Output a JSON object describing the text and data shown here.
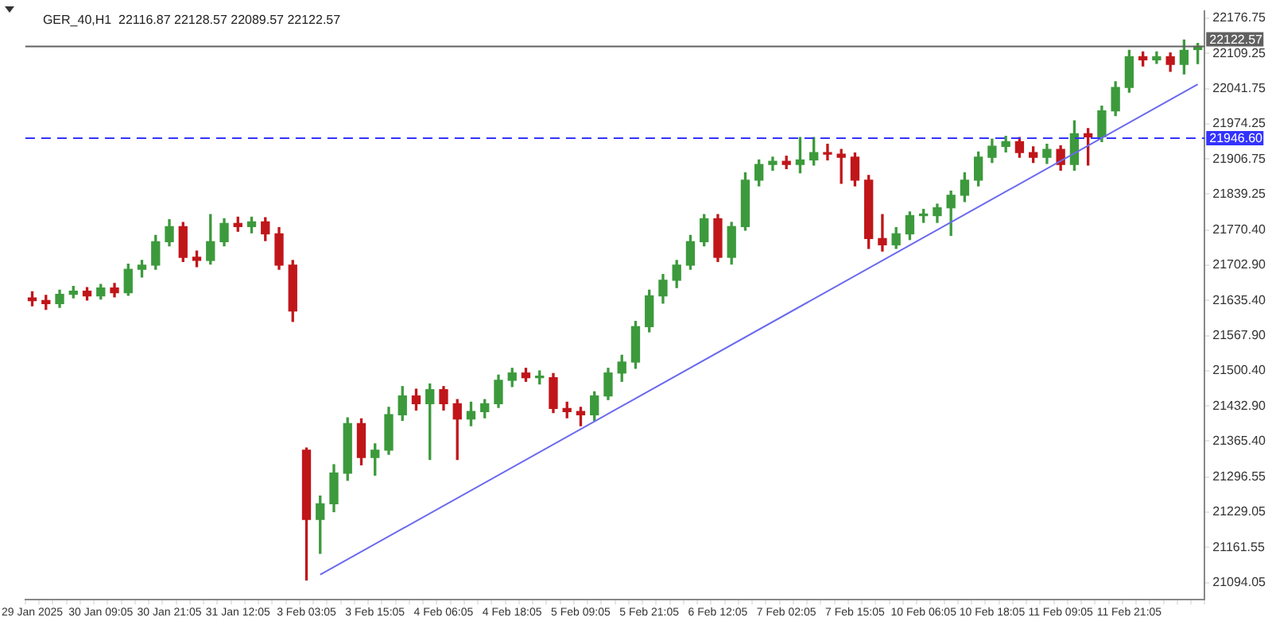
{
  "chart_data": {
    "type": "candlestick",
    "title": "GER_40,H1  22116.87 22128.57 22089.57 22122.57",
    "categories": [
      "29 Jan 2025",
      null,
      null,
      null,
      null,
      "30 Jan 09:05",
      null,
      null,
      null,
      null,
      "30 Jan 21:05",
      null,
      null,
      null,
      null,
      "31 Jan 12:05",
      null,
      null,
      null,
      null,
      "3 Feb 03:05",
      null,
      null,
      null,
      null,
      "3 Feb 15:05",
      null,
      null,
      null,
      null,
      "4 Feb 06:05",
      null,
      null,
      null,
      null,
      "4 Feb 18:05",
      null,
      null,
      null,
      null,
      "5 Feb 09:05",
      null,
      null,
      null,
      null,
      "5 Feb 21:05",
      null,
      null,
      null,
      null,
      "6 Feb 12:05",
      null,
      null,
      null,
      null,
      "7 Feb 02:05",
      null,
      null,
      null,
      null,
      "7 Feb 15:05",
      null,
      null,
      null,
      null,
      "10 Feb 06:05",
      null,
      null,
      null,
      null,
      "10 Feb 18:05",
      null,
      null,
      null,
      null,
      "11 Feb 09:05",
      null,
      null,
      null,
      null,
      "11 Feb 21:05",
      null,
      null,
      null,
      null,
      null
    ],
    "ohlc": [
      [
        21640,
        21652,
        21625,
        21635
      ],
      [
        21635,
        21645,
        21618,
        21629
      ],
      [
        21629,
        21655,
        21622,
        21647
      ],
      [
        21647,
        21662,
        21640,
        21653
      ],
      [
        21653,
        21660,
        21636,
        21644
      ],
      [
        21644,
        21666,
        21638,
        21659
      ],
      [
        21659,
        21668,
        21642,
        21650
      ],
      [
        21650,
        21705,
        21645,
        21695
      ],
      [
        21695,
        21712,
        21680,
        21703
      ],
      [
        21703,
        21760,
        21695,
        21748
      ],
      [
        21748,
        21790,
        21740,
        21777
      ],
      [
        21777,
        21785,
        21710,
        21718
      ],
      [
        21718,
        21730,
        21700,
        21712
      ],
      [
        21712,
        21800,
        21705,
        21748
      ],
      [
        21748,
        21792,
        21740,
        21783
      ],
      [
        21783,
        21795,
        21768,
        21777
      ],
      [
        21777,
        21795,
        21765,
        21786
      ],
      [
        21786,
        21794,
        21750,
        21763
      ],
      [
        21763,
        21775,
        21695,
        21703
      ],
      [
        21703,
        21712,
        21595,
        21615
      ],
      [
        21348,
        21352,
        21099,
        21215
      ],
      [
        21215,
        21260,
        21150,
        21245
      ],
      [
        21245,
        21320,
        21230,
        21304
      ],
      [
        21304,
        21410,
        21290,
        21399
      ],
      [
        21399,
        21408,
        21320,
        21334
      ],
      [
        21334,
        21360,
        21300,
        21348
      ],
      [
        21348,
        21430,
        21340,
        21416
      ],
      [
        21416,
        21470,
        21405,
        21452
      ],
      [
        21452,
        21465,
        21425,
        21437
      ],
      [
        21437,
        21475,
        21330,
        21464
      ],
      [
        21464,
        21470,
        21425,
        21437
      ],
      [
        21437,
        21445,
        21330,
        21408
      ],
      [
        21408,
        21440,
        21395,
        21422
      ],
      [
        21422,
        21445,
        21410,
        21437
      ],
      [
        21437,
        21492,
        21430,
        21482
      ],
      [
        21482,
        21505,
        21470,
        21496
      ],
      [
        21496,
        21505,
        21480,
        21487
      ],
      [
        21487,
        21500,
        21475,
        21487
      ],
      [
        21487,
        21495,
        21420,
        21428
      ],
      [
        21428,
        21440,
        21410,
        21422
      ],
      [
        21422,
        21430,
        21395,
        21416
      ],
      [
        21416,
        21460,
        21405,
        21452
      ],
      [
        21452,
        21505,
        21445,
        21496
      ],
      [
        21496,
        21530,
        21480,
        21517
      ],
      [
        21517,
        21595,
        21505,
        21585
      ],
      [
        21585,
        21655,
        21575,
        21644
      ],
      [
        21644,
        21685,
        21630,
        21674
      ],
      [
        21674,
        21712,
        21660,
        21703
      ],
      [
        21703,
        21760,
        21695,
        21748
      ],
      [
        21748,
        21800,
        21740,
        21792
      ],
      [
        21792,
        21800,
        21710,
        21718
      ],
      [
        21718,
        21785,
        21705,
        21777
      ],
      [
        21777,
        21880,
        21770,
        21866
      ],
      [
        21866,
        21905,
        21855,
        21896
      ],
      [
        21896,
        21910,
        21885,
        21902
      ],
      [
        21902,
        21912,
        21888,
        21896
      ],
      [
        21896,
        21948,
        21880,
        21905
      ],
      [
        21905,
        21948,
        21895,
        21919
      ],
      [
        21919,
        21935,
        21905,
        21916
      ],
      [
        21916,
        21925,
        21860,
        21910
      ],
      [
        21910,
        21918,
        21855,
        21866
      ],
      [
        21866,
        21875,
        21735,
        21754
      ],
      [
        21754,
        21800,
        21730,
        21742
      ],
      [
        21742,
        21775,
        21735,
        21763
      ],
      [
        21763,
        21805,
        21752,
        21798
      ],
      [
        21798,
        21810,
        21785,
        21798
      ],
      [
        21798,
        21820,
        21785,
        21813
      ],
      [
        21813,
        21845,
        21760,
        21837
      ],
      [
        21837,
        21880,
        21825,
        21866
      ],
      [
        21866,
        21920,
        21855,
        21910
      ],
      [
        21910,
        21945,
        21900,
        21931
      ],
      [
        21931,
        21950,
        21920,
        21940
      ],
      [
        21940,
        21948,
        21910,
        21919
      ],
      [
        21919,
        21930,
        21900,
        21910
      ],
      [
        21910,
        21935,
        21898,
        21925
      ],
      [
        21925,
        21932,
        21885,
        21896
      ],
      [
        21896,
        21980,
        21885,
        21955
      ],
      [
        21955,
        21965,
        21895,
        21949
      ],
      [
        21949,
        22008,
        21940,
        21999
      ],
      [
        21999,
        22055,
        21990,
        22044
      ],
      [
        22044,
        22115,
        22035,
        22103
      ],
      [
        22103,
        22112,
        22085,
        22097
      ],
      [
        22097,
        22112,
        22090,
        22103
      ],
      [
        22103,
        22110,
        22075,
        22088
      ],
      [
        22088,
        22135,
        22070,
        22115
      ],
      [
        22116.87,
        22128.57,
        22089.57,
        22122.57
      ]
    ],
    "colors": [
      "#c0161a",
      "#c0161a",
      "#3c9a3c",
      "#3c9a3c",
      "#c0161a",
      "#3c9a3c",
      "#c0161a",
      "#3c9a3c",
      "#3c9a3c",
      "#3c9a3c",
      "#3c9a3c",
      "#c0161a",
      "#c0161a",
      "#3c9a3c",
      "#3c9a3c",
      "#c0161a",
      "#3c9a3c",
      "#c0161a",
      "#c0161a",
      "#c0161a",
      "#c0161a",
      "#3c9a3c",
      "#3c9a3c",
      "#3c9a3c",
      "#c0161a",
      "#3c9a3c",
      "#3c9a3c",
      "#3c9a3c",
      "#c0161a",
      "#3c9a3c",
      "#c0161a",
      "#c0161a",
      "#3c9a3c",
      "#3c9a3c",
      "#3c9a3c",
      "#3c9a3c",
      "#c0161a",
      "#3c9a3c",
      "#c0161a",
      "#c0161a",
      "#c0161a",
      "#3c9a3c",
      "#3c9a3c",
      "#3c9a3c",
      "#3c9a3c",
      "#3c9a3c",
      "#3c9a3c",
      "#3c9a3c",
      "#3c9a3c",
      "#3c9a3c",
      "#c0161a",
      "#3c9a3c",
      "#3c9a3c",
      "#3c9a3c",
      "#3c9a3c",
      "#c0161a",
      "#3c9a3c",
      "#3c9a3c",
      "#c0161a",
      "#c0161a",
      "#c0161a",
      "#c0161a",
      "#c0161a",
      "#3c9a3c",
      "#3c9a3c",
      "#3c9a3c",
      "#3c9a3c",
      "#3c9a3c",
      "#3c9a3c",
      "#3c9a3c",
      "#3c9a3c",
      "#3c9a3c",
      "#c0161a",
      "#c0161a",
      "#3c9a3c",
      "#c0161a",
      "#3c9a3c",
      "#c0161a",
      "#3c9a3c",
      "#3c9a3c",
      "#3c9a3c",
      "#c0161a",
      "#3c9a3c",
      "#c0161a",
      "#3c9a3c",
      "#3c9a3c"
    ],
    "series": [
      {
        "type": "line",
        "color": "#6a6aee",
        "values": [
          null,
          null,
          null,
          null,
          null,
          null,
          null,
          null,
          null,
          null,
          null,
          null,
          null,
          null,
          null,
          null,
          null,
          null,
          null,
          null,
          null,
          21109,
          null,
          null,
          null,
          null,
          null,
          null,
          null,
          null,
          null,
          null,
          null,
          null,
          null,
          null,
          null,
          null,
          null,
          null,
          null,
          null,
          null,
          null,
          null,
          null,
          null,
          null,
          null,
          null,
          null,
          null,
          null,
          null,
          null,
          null,
          null,
          null,
          null,
          null,
          null,
          null,
          null,
          null,
          null,
          null,
          null,
          null,
          null,
          null,
          null,
          null,
          null,
          null,
          null,
          null,
          null,
          null,
          null,
          null,
          null,
          null,
          null,
          null,
          null,
          22050
        ]
      }
    ],
    "marker": "none",
    "ylim": [
      21061,
      22191
    ],
    "yticks": [
      22176.75,
      22109.25,
      22041.75,
      21974.25,
      21906.75,
      21839.25,
      {
        "value": 21770.4,
        "label": "21770.40"
      },
      {
        "value": 21702.9,
        "label": "21702.90"
      },
      {
        "value": 21635.4,
        "label": "21635.40"
      },
      {
        "value": 21567.9,
        "label": "21567.90"
      },
      {
        "value": 21500.4,
        "label": "21500.40"
      },
      {
        "value": 21432.9,
        "label": "21432.90"
      },
      {
        "value": 21365.4,
        "label": "21365.40"
      },
      21296.55,
      21229.05,
      21161.55,
      21094.05
    ],
    "ref_lines": [
      {
        "axis": "y",
        "value": 21946.6,
        "label": "21946.60",
        "color": "#3333ff",
        "line_style": "dashed"
      },
      {
        "axis": "y",
        "value": 22122.57,
        "label": "22122.57",
        "color": "#606060",
        "line_style": "solid"
      }
    ],
    "grid": false,
    "legend": false
  }
}
